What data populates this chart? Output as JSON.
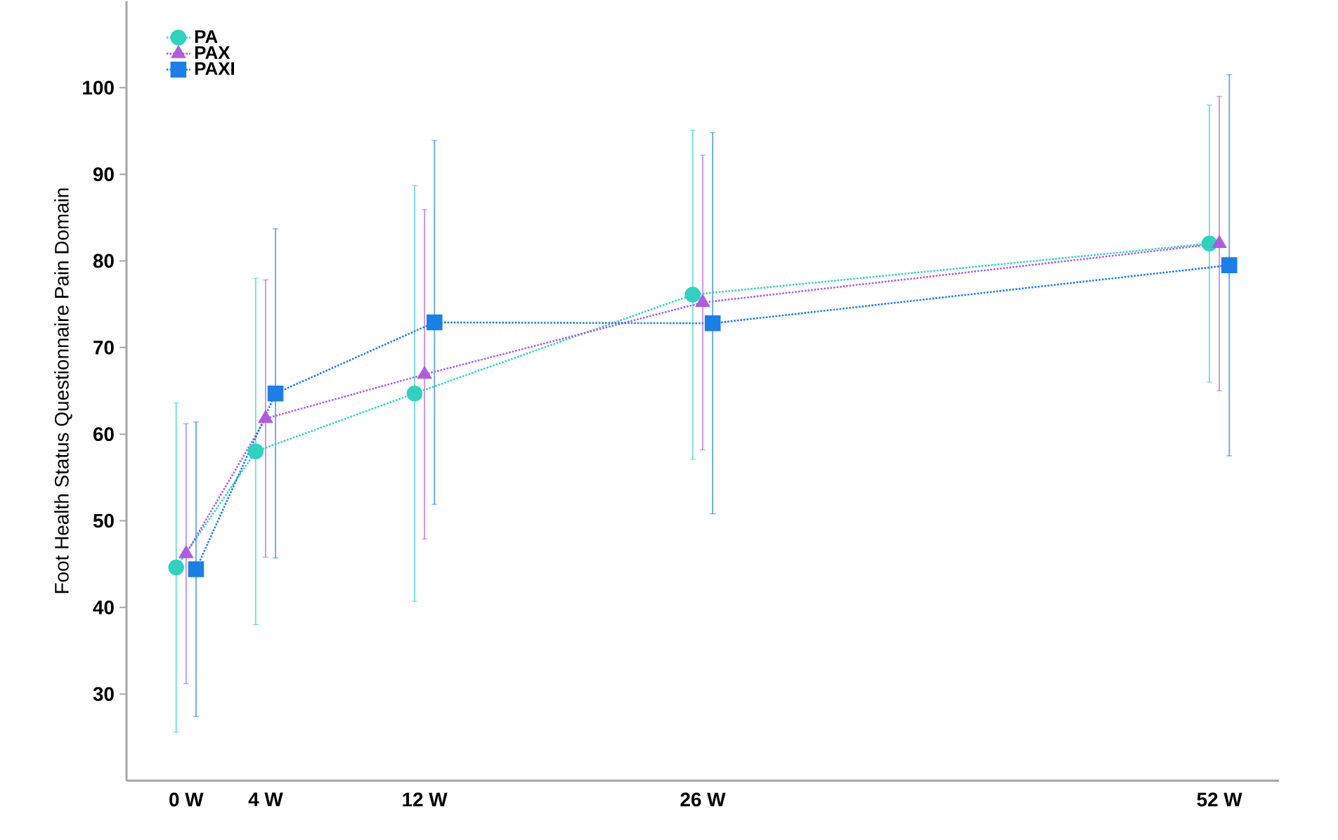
{
  "chart_data": {
    "type": "line",
    "ylabel": "Foot Health Status Questionnaire Pain Domain",
    "xlim": [
      -3,
      55
    ],
    "ylim": [
      20,
      110
    ],
    "xticks": [
      {
        "value": 0,
        "label": "0 W"
      },
      {
        "value": 4,
        "label": "4 W"
      },
      {
        "value": 12,
        "label": "12 W"
      },
      {
        "value": 26,
        "label": "26 W"
      },
      {
        "value": 52,
        "label": "52 W"
      }
    ],
    "yticks": [
      30,
      40,
      50,
      60,
      70,
      80,
      90,
      100
    ],
    "legend": "top left",
    "line_style": "dotted",
    "grid": false,
    "series": [
      {
        "name": "PA",
        "color": "#2ed3c0",
        "marker": "circle",
        "x": [
          -0.5,
          3.5,
          11.5,
          25.5,
          51.5
        ],
        "values": [
          44.6,
          58.0,
          64.7,
          76.1,
          82.0
        ],
        "errors": [
          19,
          20,
          24,
          19,
          16
        ]
      },
      {
        "name": "PAX",
        "color": "#b05ce0",
        "marker": "triangle",
        "x": [
          0,
          4,
          12,
          26,
          52
        ],
        "values": [
          46.2,
          61.8,
          66.9,
          75.2,
          82.0
        ],
        "errors": [
          15,
          16,
          19,
          17,
          17
        ]
      },
      {
        "name": "PAXI",
        "color": "#1a7fe8",
        "marker": "square",
        "x": [
          0.5,
          4.5,
          12.5,
          26.5,
          52.5
        ],
        "values": [
          44.4,
          64.7,
          72.9,
          72.8,
          79.5
        ],
        "errors": [
          17,
          19,
          21,
          22,
          22
        ]
      }
    ]
  }
}
